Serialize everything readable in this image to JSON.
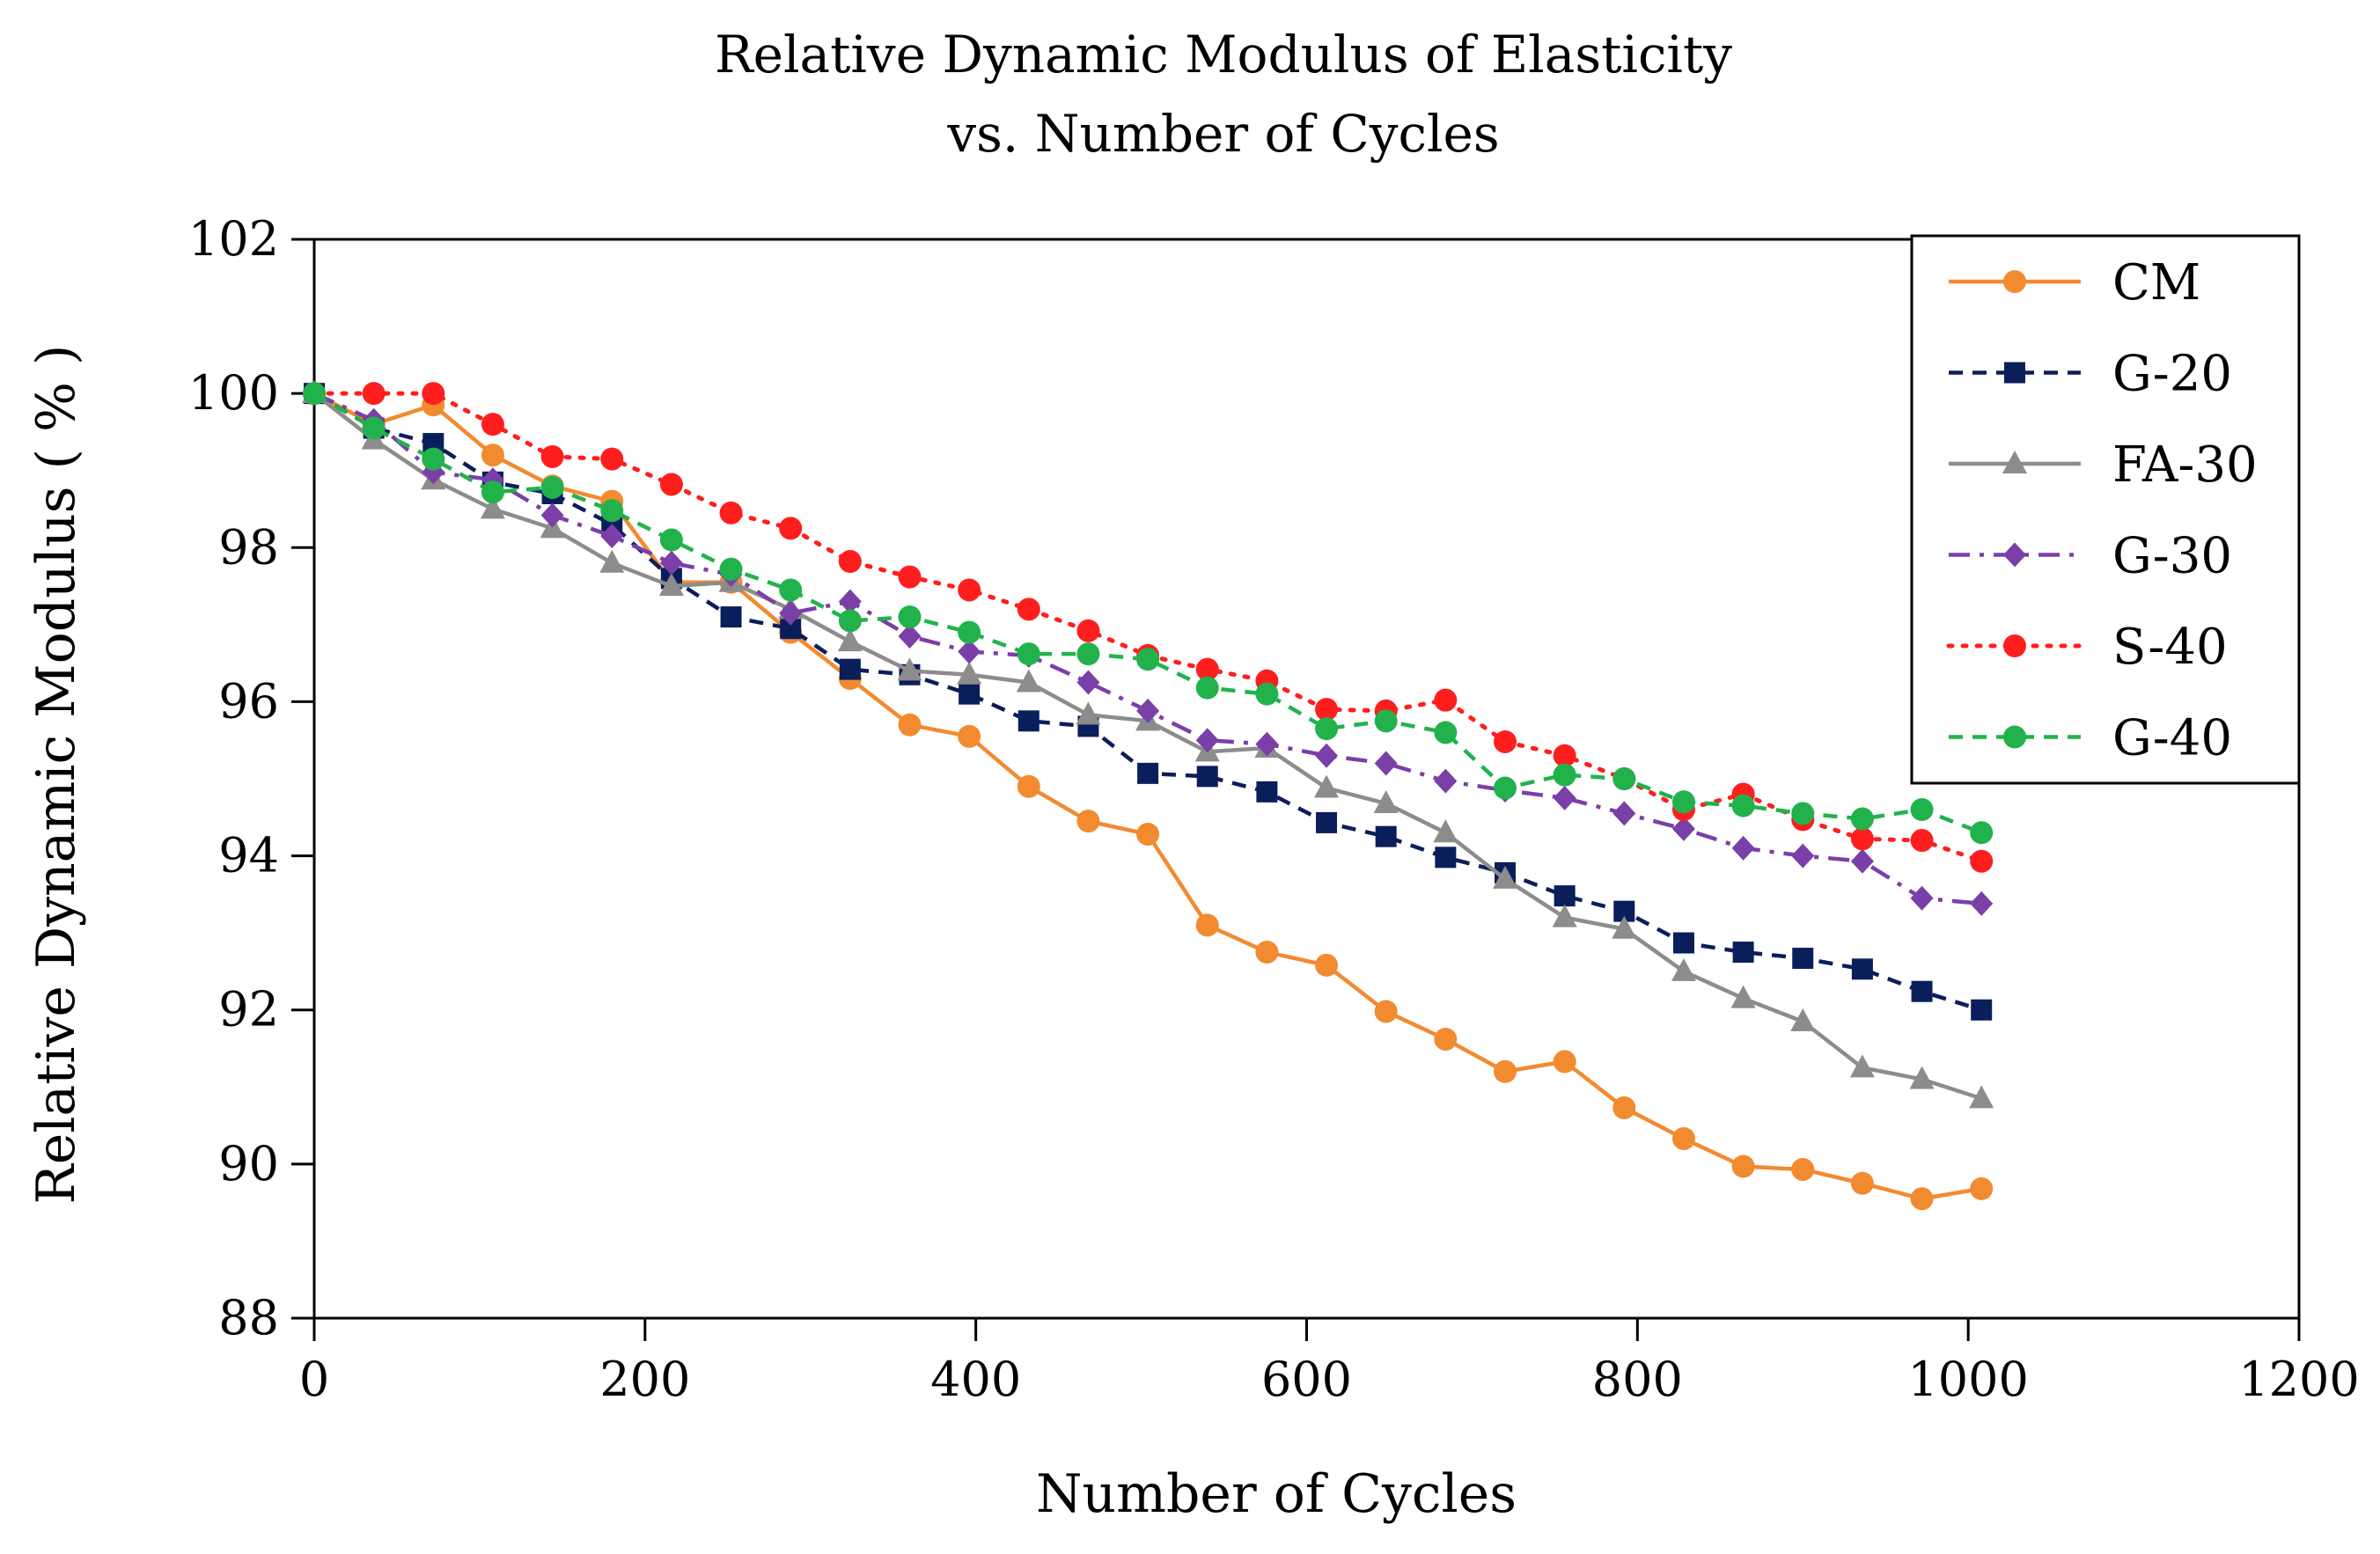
{
  "chart_data": {
    "type": "line",
    "title": "Relative Dynamic Modulus of Elasticity",
    "subtitle": "vs. Number of Cycles",
    "xlabel": "Number of Cycles",
    "ylabel": "Relative Dynamic Modulus ( % )",
    "xlim": [
      0,
      1200
    ],
    "ylim": [
      88,
      102
    ],
    "xticks": [
      0,
      200,
      400,
      600,
      800,
      1000,
      1200
    ],
    "yticks": [
      88,
      90,
      92,
      94,
      96,
      98,
      100,
      102
    ],
    "grid": false,
    "legend_position": "top-right",
    "x": [
      0,
      36,
      72,
      108,
      144,
      180,
      216,
      252,
      288,
      324,
      360,
      396,
      432,
      468,
      504,
      540,
      576,
      612,
      648,
      684,
      720,
      756,
      792,
      828,
      864,
      900,
      936,
      972,
      1008
    ],
    "series": [
      {
        "name": "CM",
        "color": "#f28a30",
        "line": "solid",
        "marker": "circle",
        "values": [
          100,
          99.6,
          99.85,
          99.2,
          98.8,
          98.6,
          97.55,
          97.55,
          96.9,
          96.3,
          95.7,
          95.55,
          94.9,
          94.45,
          94.28,
          93.1,
          92.75,
          92.58,
          91.98,
          91.62,
          91.2,
          91.33,
          90.73,
          90.33,
          89.97,
          89.93,
          89.75,
          89.55,
          89.68
        ]
      },
      {
        "name": "G-20",
        "color": "#0b1e5c",
        "line": "dashed",
        "marker": "square",
        "values": [
          100,
          99.55,
          99.35,
          98.85,
          98.7,
          98.3,
          97.6,
          97.1,
          96.95,
          96.42,
          96.35,
          96.1,
          95.75,
          95.68,
          95.07,
          95.03,
          94.83,
          94.43,
          94.25,
          93.98,
          93.78,
          93.48,
          93.28,
          92.87,
          92.75,
          92.67,
          92.53,
          92.24,
          92.0
        ]
      },
      {
        "name": "FA-30",
        "color": "#8c8c8c",
        "line": "solid",
        "marker": "triangle",
        "values": [
          100,
          99.4,
          98.88,
          98.5,
          98.25,
          97.8,
          97.5,
          97.55,
          97.2,
          96.78,
          96.4,
          96.35,
          96.25,
          95.83,
          95.75,
          95.35,
          95.4,
          94.88,
          94.68,
          94.3,
          93.7,
          93.2,
          93.05,
          92.5,
          92.15,
          91.85,
          91.25,
          91.1,
          90.85
        ]
      },
      {
        "name": "G-30",
        "color": "#7b3fa8",
        "line": "dashdot",
        "marker": "diamond",
        "values": [
          100,
          99.65,
          98.98,
          98.88,
          98.42,
          98.15,
          97.8,
          97.65,
          97.15,
          97.3,
          96.85,
          96.65,
          96.6,
          96.25,
          95.88,
          95.5,
          95.45,
          95.3,
          95.2,
          94.97,
          94.85,
          94.75,
          94.55,
          94.35,
          94.1,
          94.0,
          93.93,
          93.45,
          93.38
        ]
      },
      {
        "name": "S-40",
        "color": "#ff1e1e",
        "line": "dotted",
        "marker": "circle",
        "values": [
          100,
          100,
          100,
          99.6,
          99.18,
          99.15,
          98.82,
          98.45,
          98.25,
          97.82,
          97.62,
          97.45,
          97.2,
          96.92,
          96.6,
          96.42,
          96.27,
          95.9,
          95.88,
          96.02,
          95.48,
          95.3,
          95.0,
          94.6,
          94.8,
          94.47,
          94.22,
          94.2,
          93.93
        ]
      },
      {
        "name": "G-40",
        "color": "#22b24c",
        "line": "dashed",
        "marker": "circle",
        "values": [
          100,
          99.55,
          99.15,
          98.72,
          98.78,
          98.48,
          98.1,
          97.72,
          97.45,
          97.05,
          97.1,
          96.9,
          96.62,
          96.62,
          96.55,
          96.18,
          96.1,
          95.65,
          95.75,
          95.6,
          94.88,
          95.05,
          95.0,
          94.7,
          94.65,
          94.55,
          94.48,
          94.6,
          94.3
        ]
      }
    ]
  }
}
